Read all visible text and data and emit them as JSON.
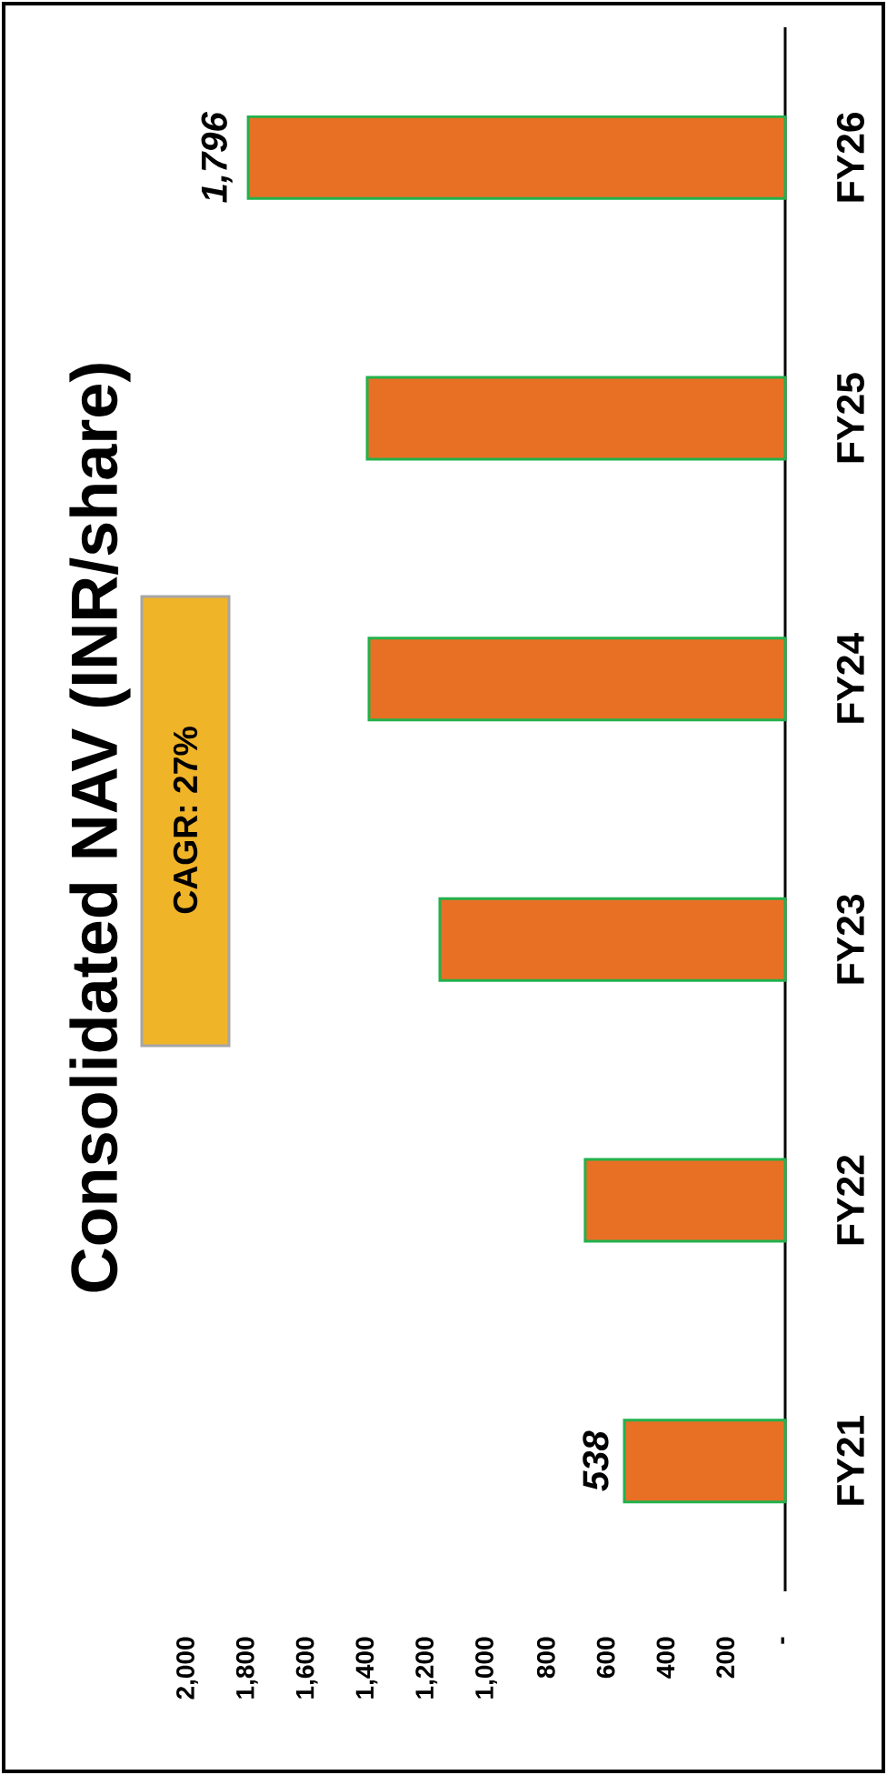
{
  "chart_data": {
    "type": "bar",
    "orientation": "horizontal",
    "title": "Consolidated NAV (INR/share)",
    "categories": [
      "FY26",
      "FY25",
      "FY24",
      "FY23",
      "FY22",
      "FY21"
    ],
    "values": [
      1796,
      1398,
      1392,
      1155,
      669,
      538
    ],
    "value_labels": [
      "1,796",
      null,
      null,
      null,
      null,
      "538"
    ],
    "color": "#e87025",
    "annotations": [
      "CAGR: 27%"
    ],
    "xlim": [
      2000,
      0
    ],
    "xticks": [
      {
        "value": 2000,
        "label": "2,000"
      },
      {
        "value": 1800,
        "label": "1,800"
      },
      {
        "value": 1600,
        "label": "1,600"
      },
      {
        "value": 1400,
        "label": "1,400"
      },
      {
        "value": 1200,
        "label": "1,200"
      },
      {
        "value": 1000,
        "label": "1,000"
      },
      800,
      600,
      400,
      200,
      {
        "value": 0,
        "label": "-"
      }
    ]
  }
}
